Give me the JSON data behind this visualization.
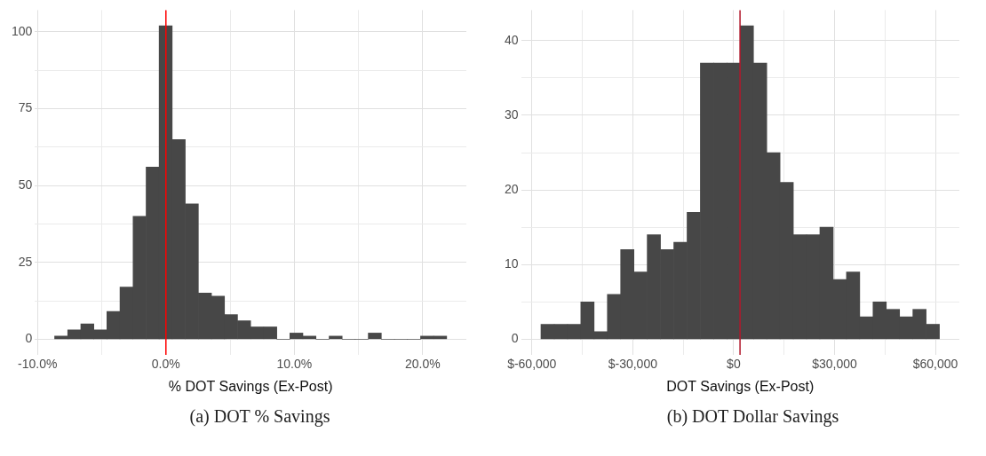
{
  "chart_data": [
    {
      "type": "histogram",
      "xlabel": "% DOT Savings (Ex-Post)",
      "annotations": [
        "(a) DOT % Savings"
      ],
      "bins": [
        -8.67,
        -7.65,
        -6.63,
        -5.61,
        -4.6,
        -3.58,
        -2.56,
        -1.54,
        -0.53,
        0.49,
        1.51,
        2.53,
        3.55,
        4.56,
        5.58,
        6.6,
        7.62,
        8.64,
        9.65,
        10.67,
        11.69,
        12.71,
        13.73,
        14.74,
        15.76,
        16.78,
        17.8,
        18.82,
        19.83,
        20.85,
        21.87
      ],
      "values": [
        1,
        3,
        5,
        3,
        9,
        17,
        40,
        56,
        102,
        65,
        44,
        15,
        14,
        8,
        6,
        4,
        4,
        0,
        2,
        1,
        0,
        1,
        0,
        0,
        2,
        0,
        0,
        0,
        1,
        1
      ],
      "color": "#474747",
      "xlim": [
        -10.2,
        23.4
      ],
      "ylim": [
        -5.1,
        107.1
      ],
      "xticks": [
        {
          "value": -10,
          "label": "-10.0%"
        },
        {
          "value": -5,
          "label": null
        },
        {
          "value": 0,
          "label": "0.0%"
        },
        {
          "value": 5,
          "label": null
        },
        {
          "value": 10,
          "label": "10.0%"
        },
        {
          "value": 15,
          "label": null
        },
        {
          "value": 20,
          "label": "20.0%"
        }
      ],
      "yticks": [
        0,
        {
          "value": 12.5,
          "label": null
        },
        25,
        {
          "value": 37.5,
          "label": null
        },
        50,
        {
          "value": 62.5,
          "label": null
        },
        75,
        {
          "value": 87.5,
          "label": null
        },
        100
      ],
      "grid": true,
      "ref_lines": [
        {
          "axis": "x",
          "value": 0,
          "color": "#ff0000"
        }
      ]
    },
    {
      "type": "histogram",
      "xlabel": "DOT Savings (Ex-Post)",
      "annotations": [
        "(b) DOT Dollar Savings"
      ],
      "bins": [
        -57300,
        -53350,
        -49400,
        -45450,
        -41500,
        -37550,
        -33600,
        -29650,
        -25700,
        -21750,
        -17800,
        -13850,
        -9900,
        -5950,
        -2000,
        1950,
        5900,
        9850,
        13800,
        17750,
        21700,
        25650,
        29600,
        33550,
        37500,
        41450,
        45400,
        49350,
        53300,
        57250,
        61200
      ],
      "values": [
        2,
        2,
        2,
        5,
        1,
        6,
        12,
        9,
        14,
        12,
        13,
        17,
        37,
        37,
        37,
        42,
        37,
        25,
        21,
        14,
        14,
        15,
        8,
        9,
        3,
        5,
        4,
        3,
        4,
        2
      ],
      "color": "#474747",
      "xlim": [
        -63225,
        67125
      ],
      "ylim": [
        -2.1,
        44.1
      ],
      "xticks": [
        {
          "value": -60000,
          "label": "$-60,000"
        },
        {
          "value": -45000,
          "label": null
        },
        {
          "value": -30000,
          "label": "$-30,000"
        },
        {
          "value": -15000,
          "label": null
        },
        {
          "value": 0,
          "label": "$0"
        },
        {
          "value": 15000,
          "label": null
        },
        {
          "value": 30000,
          "label": "$30,000"
        },
        {
          "value": 45000,
          "label": null
        },
        {
          "value": 60000,
          "label": "$60,000"
        }
      ],
      "yticks": [
        0,
        {
          "value": 5,
          "label": null
        },
        10,
        {
          "value": 15,
          "label": null
        },
        20,
        {
          "value": 25,
          "label": null
        },
        30,
        {
          "value": 35,
          "label": null
        },
        40
      ],
      "grid": true,
      "ref_lines": [
        {
          "axis": "x",
          "value": 1900,
          "color": "#b2182b"
        }
      ]
    }
  ]
}
